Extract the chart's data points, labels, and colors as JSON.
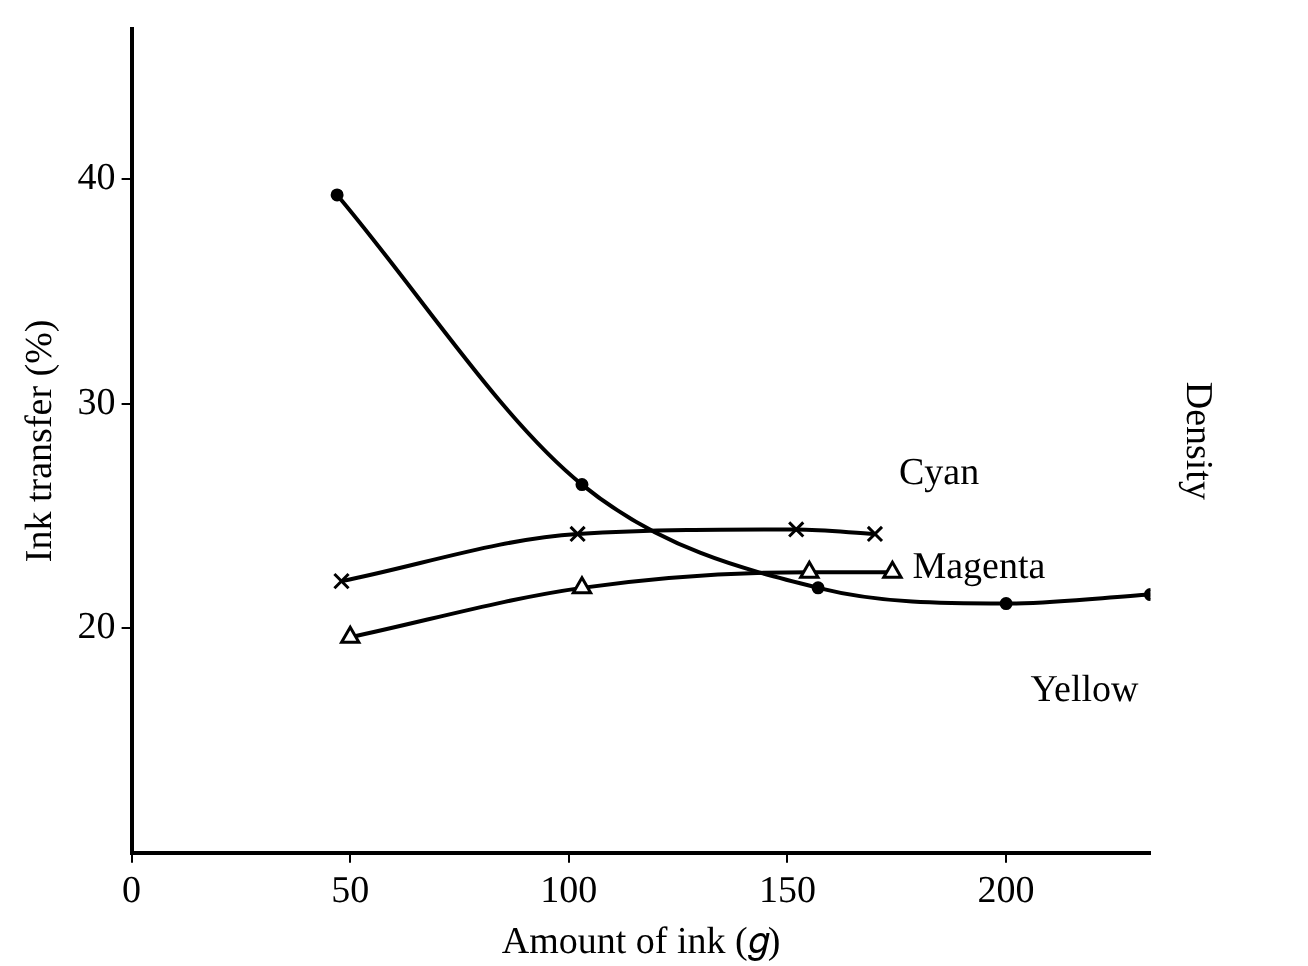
{
  "chart_data": {
    "type": "line",
    "xlabel": "Amount of ink (𝑔)",
    "ylabel": "Ink transfer (%)",
    "y2label": "Density",
    "xlim": [
      0,
      233
    ],
    "xticks": [
      0,
      50,
      100,
      150,
      200
    ],
    "ylim": [
      10,
      46.7
    ],
    "yticks": [
      20,
      30,
      40
    ],
    "grid": false,
    "legend": false,
    "series": [
      {
        "name": "Cyan",
        "color": "#000000",
        "marker": "cross",
        "x": [
          48,
          102,
          152,
          170
        ],
        "values": [
          22.1,
          24.2,
          24.4,
          24.2
        ]
      },
      {
        "name": "Magenta",
        "color": "#000000",
        "marker": "triangle",
        "x": [
          50,
          103,
          155,
          174
        ],
        "values": [
          19.6,
          21.8,
          22.5,
          22.5
        ]
      },
      {
        "name": "Yellow",
        "color": "#000000",
        "marker": "circle",
        "x": [
          47,
          103,
          157,
          200,
          233
        ],
        "values": [
          39.3,
          26.4,
          21.8,
          21.1,
          21.5
        ]
      }
    ]
  }
}
